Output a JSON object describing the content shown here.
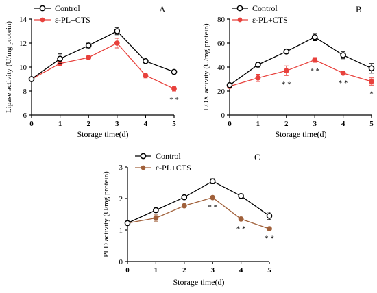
{
  "chart_data": [
    {
      "type": "line",
      "panel_label": "A",
      "xlabel": "Storage time(d)",
      "ylabel": "Lipase activity (U/mg protein)",
      "x": [
        0,
        1,
        2,
        3,
        4,
        5
      ],
      "x_ticks": [
        "0",
        "1",
        "2",
        "3",
        "4",
        "5"
      ],
      "ylim": [
        6,
        14
      ],
      "y_ticks": [
        "6",
        "8",
        "10",
        "12",
        "14"
      ],
      "legend_position": "top-left",
      "series": [
        {
          "name": "Control",
          "marker": "open-circle",
          "color": "#000000",
          "values": [
            9.0,
            10.7,
            11.8,
            13.0,
            10.5,
            9.6
          ],
          "errors": [
            0.15,
            0.4,
            0.2,
            0.3,
            0.1,
            0.1
          ]
        },
        {
          "name": "ε-PL+CTS",
          "marker": "filled-circle",
          "color": "#e8413c",
          "values": [
            9.0,
            10.3,
            10.8,
            12.0,
            9.3,
            8.2
          ],
          "errors": [
            0.15,
            0.2,
            0.1,
            0.4,
            0.2,
            0.2
          ]
        }
      ],
      "annotations": [
        {
          "x": 5,
          "text": "* *"
        }
      ]
    },
    {
      "type": "line",
      "panel_label": "B",
      "xlabel": "Storage time(d)",
      "ylabel": "LOX activity (U/mg protein)",
      "x": [
        0,
        1,
        2,
        3,
        4,
        5
      ],
      "x_ticks": [
        "0",
        "1",
        "2",
        "3",
        "4",
        "5"
      ],
      "ylim": [
        0,
        80
      ],
      "y_ticks": [
        "0",
        "20",
        "40",
        "60",
        "80"
      ],
      "legend_position": "top-left",
      "series": [
        {
          "name": "Control",
          "marker": "open-circle",
          "color": "#000000",
          "values": [
            25,
            42,
            53,
            65,
            50,
            39
          ],
          "errors": [
            1.5,
            2,
            1,
            3,
            3,
            4
          ]
        },
        {
          "name": "ε-PL+CTS",
          "marker": "filled-circle",
          "color": "#e8413c",
          "values": [
            24,
            31,
            37,
            46,
            35,
            28
          ],
          "errors": [
            1.5,
            3,
            4,
            2,
            1,
            3
          ]
        }
      ],
      "annotations": [
        {
          "x": 2,
          "text": "* *"
        },
        {
          "x": 3,
          "text": "* *"
        },
        {
          "x": 4,
          "text": "* *"
        },
        {
          "x": 5,
          "text": "*"
        }
      ]
    },
    {
      "type": "line",
      "panel_label": "C",
      "xlabel": "Storage time(d)",
      "ylabel": "PLD activity (U/mg protein)",
      "x": [
        0,
        1,
        2,
        3,
        4,
        5
      ],
      "x_ticks": [
        "0",
        "1",
        "2",
        "3",
        "4",
        "5"
      ],
      "ylim": [
        0,
        3
      ],
      "y_ticks": [
        "0",
        "1",
        "2",
        "3"
      ],
      "legend_position": "top-left",
      "series": [
        {
          "name": "Control",
          "marker": "open-circle",
          "color": "#000000",
          "values": [
            1.22,
            1.63,
            2.04,
            2.55,
            2.08,
            1.45
          ],
          "errors": [
            0.03,
            0.07,
            0.05,
            0.08,
            0.03,
            0.12
          ]
        },
        {
          "name": "ε-PL+CTS",
          "marker": "filled-circle",
          "color": "#a0603a",
          "values": [
            1.22,
            1.38,
            1.77,
            2.03,
            1.35,
            1.04
          ],
          "errors": [
            0.03,
            0.1,
            0.03,
            0.03,
            0.03,
            0.03
          ]
        }
      ],
      "annotations": [
        {
          "x": 3,
          "text": "* *"
        },
        {
          "x": 4,
          "text": "* *"
        },
        {
          "x": 5,
          "text": "* *"
        }
      ]
    }
  ]
}
